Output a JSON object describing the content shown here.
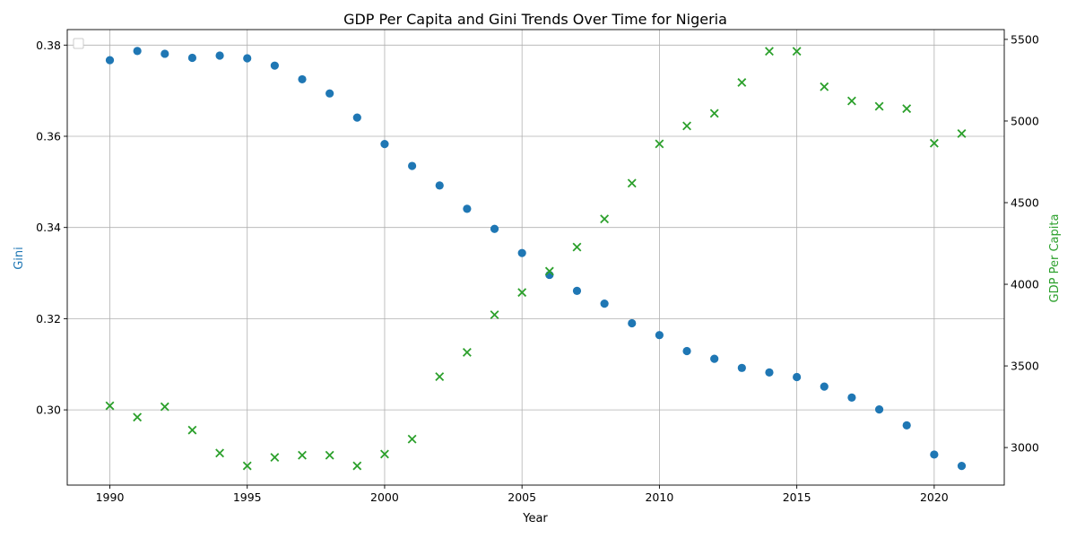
{
  "chart_data": {
    "type": "scatter",
    "title": "GDP Per Capita and Gini Trends Over Time for Nigeria",
    "xlabel": "Year",
    "xlim": [
      1988.45,
      1992.55
    ],
    "x_ticks": [
      1990,
      1995,
      2000,
      2005,
      2010,
      2015,
      2020
    ],
    "grid": true,
    "legend_placement": "top-left (empty)",
    "left_axis": {
      "label": "Gini",
      "color": "#1f77b4",
      "ylim": [
        0.2835,
        0.3834
      ],
      "ticks": [
        0.3,
        0.32,
        0.34,
        0.36,
        0.38
      ],
      "tick_labels": [
        "0.30",
        "0.32",
        "0.34",
        "0.36",
        "0.38"
      ]
    },
    "right_axis": {
      "label": "GDP Per Capita",
      "color": "#2ca02c",
      "ylim": [
        2770,
        5560
      ],
      "ticks": [
        3000,
        3500,
        4000,
        4500,
        5000,
        5500
      ],
      "tick_labels": [
        "3000",
        "3500",
        "4000",
        "4500",
        "5000",
        "5500"
      ]
    },
    "x": [
      1990,
      1991,
      1992,
      1993,
      1994,
      1995,
      1996,
      1997,
      1998,
      1999,
      2000,
      2001,
      2002,
      2003,
      2004,
      2005,
      2006,
      2007,
      2008,
      2009,
      2010,
      2011,
      2012,
      2013,
      2014,
      2015,
      2016,
      2017,
      2018,
      2019,
      2020,
      2021
    ],
    "series": [
      {
        "name": "Gini",
        "axis": "left",
        "marker": "circle",
        "color": "#1f77b4",
        "values": [
          0.3767,
          0.3787,
          0.3781,
          0.3772,
          0.3777,
          0.3771,
          0.3755,
          0.3725,
          0.3694,
          0.3641,
          0.3583,
          0.3535,
          0.3492,
          0.3441,
          0.3397,
          0.3344,
          0.3296,
          0.3261,
          0.3233,
          0.319,
          0.3164,
          0.3129,
          0.3112,
          0.3092,
          0.3082,
          0.3072,
          0.3051,
          0.3027,
          0.3001,
          0.2966,
          0.2902,
          0.2877
        ]
      },
      {
        "name": "GDP Per Capita",
        "axis": "right",
        "marker": "x",
        "color": "#2ca02c",
        "values": [
          3256,
          3186,
          3250,
          3107,
          2966,
          2888,
          2940,
          2953,
          2953,
          2888,
          2960,
          3052,
          3434,
          3583,
          3813,
          3950,
          4080,
          4228,
          4400,
          4619,
          4860,
          4970,
          5047,
          5236,
          5427,
          5427,
          5210,
          5123,
          5090,
          5076,
          4864,
          4923
        ]
      }
    ]
  }
}
